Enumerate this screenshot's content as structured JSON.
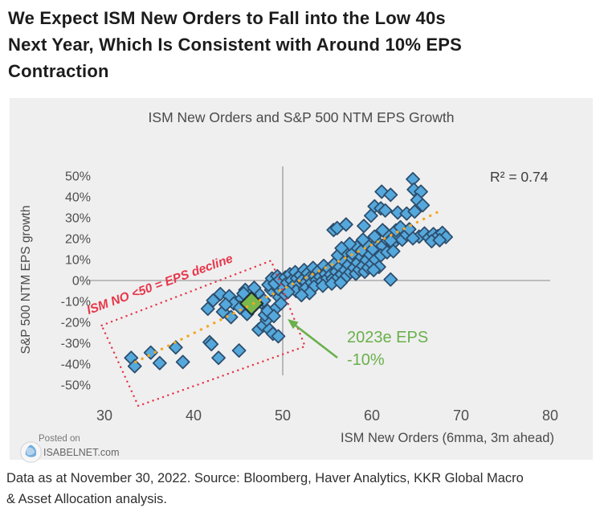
{
  "heading": {
    "line1": "We Expect ISM New Orders to Fall into the Low 40s",
    "line2": "Next Year, Which Is Consistent with Around 10% EPS",
    "line3": "Contraction"
  },
  "footer": {
    "posted_on": "Posted on",
    "site": "ISABELNET.com"
  },
  "caption": {
    "line1": "Data as at November 30, 2022. Source: Bloomberg, Haver Analytics, KKR Global Macro",
    "line2": "& Asset Allocation analysis."
  },
  "colors": {
    "point_fill": "#55a8db",
    "point_stroke": "#2d4e6e",
    "highlight_fill": "#79b84a",
    "highlight_stroke": "#1f2d36",
    "trend": "#f6a723",
    "red": "#e8364a",
    "green_text": "#6ab04c",
    "ref_line": "#ababab",
    "panel_bg": "#efefef",
    "tick_text": "#4f4f4f"
  },
  "chart_data": {
    "type": "scatter",
    "title": "ISM New Orders and S&P 500 NTM EPS Growth",
    "xlabel": "ISM New Orders (6mma, 3m ahead)",
    "ylabel": "S&P 500 NTM EPS growth",
    "xlim": [
      28,
      82
    ],
    "ylim": [
      -55,
      55
    ],
    "xticks": [
      30,
      40,
      50,
      60,
      70,
      80
    ],
    "yticks": [
      50,
      40,
      30,
      20,
      10,
      0,
      -10,
      -20,
      -30,
      -40,
      -50
    ],
    "grid": false,
    "legend": "none",
    "r_squared": 0.74,
    "annotations": {
      "r_squared_label": "R² = 0.74",
      "red_label": "ISM NO <50 = EPS decline",
      "green_label_line1": "2023e EPS",
      "green_label_line2": "-10%"
    },
    "reference_lines": {
      "vertical_x": 50,
      "horizontal_y": 0
    },
    "trendline": {
      "x1": 33.5,
      "y1": -39,
      "x2": 67.5,
      "y2": 33
    },
    "red_box_data_corners": [
      [
        29.7,
        -21.5
      ],
      [
        48.7,
        9.5
      ],
      [
        52.5,
        -31.5
      ],
      [
        33.8,
        -60
      ]
    ],
    "highlight_point": {
      "x": 46.5,
      "y": -11,
      "label": "2023e EPS -10%"
    },
    "points": [
      [
        33.0,
        -37
      ],
      [
        33.4,
        -41
      ],
      [
        35.2,
        -34.5
      ],
      [
        36.2,
        -39.5
      ],
      [
        38.0,
        -32
      ],
      [
        38.8,
        -39
      ],
      [
        41.8,
        -29.5
      ],
      [
        42.8,
        -37
      ],
      [
        42.0,
        -30.5
      ],
      [
        45.1,
        -33.5
      ],
      [
        47.3,
        -23.5
      ],
      [
        47.8,
        -21.6
      ],
      [
        48.5,
        -23.5
      ],
      [
        48.9,
        -25.5
      ],
      [
        49.5,
        -26.7
      ],
      [
        48.2,
        -18.8
      ],
      [
        41.6,
        -13.5
      ],
      [
        42.2,
        -9.5
      ],
      [
        43.0,
        -6.5
      ],
      [
        43.3,
        -15
      ],
      [
        44.0,
        -7.5
      ],
      [
        44.5,
        -11
      ],
      [
        45.4,
        -8.5
      ],
      [
        45.8,
        -4.5
      ],
      [
        46.0,
        -16
      ],
      [
        47.2,
        -6
      ],
      [
        47.6,
        -10.5
      ],
      [
        48.0,
        -16.5
      ],
      [
        48.3,
        -14.5
      ],
      [
        47.9,
        -9.5
      ],
      [
        48.7,
        -4.5
      ],
      [
        49.3,
        -13
      ],
      [
        49.6,
        -8
      ],
      [
        46.3,
        -7
      ],
      [
        45.2,
        -13
      ],
      [
        44.2,
        -17.5
      ],
      [
        43.6,
        -11.5
      ],
      [
        49.0,
        -17
      ],
      [
        49.8,
        -11
      ],
      [
        50.2,
        -6.5
      ],
      [
        49.5,
        -4
      ],
      [
        50.0,
        -2.5
      ],
      [
        46.8,
        -3.5
      ],
      [
        45.6,
        -6.2
      ],
      [
        48.4,
        -2
      ],
      [
        48.8,
        1
      ],
      [
        49.1,
        -1.5
      ],
      [
        49.4,
        2
      ],
      [
        49.7,
        0.5
      ],
      [
        50.1,
        -3.5
      ],
      [
        50.3,
        1.5
      ],
      [
        50.5,
        -1
      ],
      [
        50.8,
        3
      ],
      [
        51.0,
        0
      ],
      [
        51.2,
        -2.5
      ],
      [
        51.4,
        4
      ],
      [
        51.6,
        1
      ],
      [
        51.8,
        -1.8
      ],
      [
        52.0,
        2.5
      ],
      [
        52.2,
        0.2
      ],
      [
        52.4,
        5
      ],
      [
        52.6,
        -0.8
      ],
      [
        52.8,
        3.5
      ],
      [
        53.0,
        1.2
      ],
      [
        53.2,
        -1.2
      ],
      [
        53.4,
        6
      ],
      [
        53.6,
        2.2
      ],
      [
        53.8,
        0.2
      ],
      [
        54.0,
        4.5
      ],
      [
        54.2,
        1.8
      ],
      [
        54.4,
        -0.5
      ],
      [
        54.6,
        7
      ],
      [
        54.8,
        3.2
      ],
      [
        55.0,
        1
      ],
      [
        55.2,
        5.5
      ],
      [
        55.4,
        2.8
      ],
      [
        55.6,
        0.8
      ],
      [
        55.8,
        8
      ],
      [
        56.0,
        4.2
      ],
      [
        56.2,
        1.5
      ],
      [
        56.4,
        6.5
      ],
      [
        56.6,
        3
      ],
      [
        56.8,
        9.5
      ],
      [
        57.0,
        5
      ],
      [
        57.2,
        2.2
      ],
      [
        57.4,
        7.5
      ],
      [
        57.6,
        4
      ],
      [
        57.8,
        10.5
      ],
      [
        58.0,
        6
      ],
      [
        58.2,
        3.2
      ],
      [
        58.4,
        8.5
      ],
      [
        58.6,
        5.2
      ],
      [
        58.8,
        11.5
      ],
      [
        59.0,
        7
      ],
      [
        59.2,
        4.2
      ],
      [
        59.4,
        9.8
      ],
      [
        59.6,
        6.2
      ],
      [
        59.8,
        12.5
      ],
      [
        60.0,
        8
      ],
      [
        51.5,
        -5
      ],
      [
        52.5,
        -4
      ],
      [
        53.5,
        -3
      ],
      [
        54.5,
        -2.5
      ],
      [
        55.5,
        -1.5
      ],
      [
        56.5,
        -1
      ],
      [
        53.0,
        -6
      ],
      [
        50.6,
        -5.5
      ],
      [
        52.1,
        -7
      ],
      [
        56.2,
        12
      ],
      [
        57.0,
        14
      ],
      [
        57.8,
        13
      ],
      [
        58.3,
        16
      ],
      [
        58.9,
        14.5
      ],
      [
        59.5,
        17
      ],
      [
        60.1,
        15
      ],
      [
        60.6,
        18.5
      ],
      [
        61.2,
        16.5
      ],
      [
        61.8,
        19
      ],
      [
        62.3,
        17.5
      ],
      [
        62.9,
        21
      ],
      [
        63.4,
        19.5
      ],
      [
        63.9,
        22
      ],
      [
        60.3,
        21
      ],
      [
        59.0,
        19.5
      ],
      [
        57.5,
        17.5
      ],
      [
        56.6,
        15.5
      ],
      [
        61.5,
        23
      ],
      [
        62.7,
        24
      ],
      [
        63.2,
        25.5
      ],
      [
        64.2,
        24.5
      ],
      [
        55.7,
        24.2
      ],
      [
        56.1,
        25.1
      ],
      [
        57.1,
        26.8
      ],
      [
        59.1,
        26.1
      ],
      [
        61.2,
        24.1
      ],
      [
        62.1,
        19.1
      ],
      [
        60.4,
        10
      ],
      [
        61.0,
        12
      ],
      [
        61.7,
        13.5
      ],
      [
        60.8,
        6.5
      ],
      [
        62.4,
        14
      ],
      [
        60.2,
        5
      ],
      [
        64.6,
        48.5
      ],
      [
        61.1,
        42.5
      ],
      [
        62.1,
        41
      ],
      [
        64.7,
        43.5
      ],
      [
        65.5,
        42.5
      ],
      [
        65.1,
        38.5
      ],
      [
        65.7,
        36
      ],
      [
        60.3,
        35.5
      ],
      [
        61.0,
        34.5
      ],
      [
        59.9,
        31
      ],
      [
        61.5,
        33.5
      ],
      [
        62.9,
        32.5
      ],
      [
        63.9,
        32
      ],
      [
        64.8,
        33
      ],
      [
        65.3,
        21
      ],
      [
        65.9,
        22.5
      ],
      [
        66.4,
        20.5
      ],
      [
        66.9,
        22.2
      ],
      [
        67.4,
        21.2
      ],
      [
        67.9,
        22.8
      ],
      [
        68.3,
        20.8
      ],
      [
        66.7,
        18.8
      ],
      [
        67.6,
        19.3
      ],
      [
        64.6,
        20.2
      ],
      [
        62.1,
        0.5
      ]
    ]
  }
}
